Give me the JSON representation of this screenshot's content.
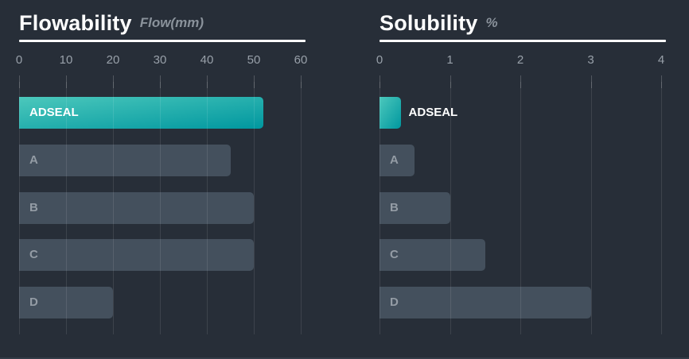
{
  "page": {
    "background_color": "#272e38",
    "bar_color": "#44505d",
    "highlight_gradient": [
      "#4cc8bc",
      "#00979f"
    ],
    "gridline_color": "rgba(255,255,255,0.10)",
    "title_color": "#ffffff",
    "subtitle_color": "#8a929b",
    "tick_label_color": "#98a0a9"
  },
  "chart_data": [
    {
      "type": "bar",
      "orientation": "horizontal",
      "title": "Flowability",
      "subtitle": "Flow(mm)",
      "categories": [
        "ADSEAL",
        "A",
        "B",
        "C",
        "D"
      ],
      "values": [
        52,
        45,
        50,
        50,
        20
      ],
      "xlim": [
        0,
        60
      ],
      "ticks": [
        0,
        10,
        20,
        30,
        40,
        50,
        60
      ],
      "highlight_category": "ADSEAL",
      "grid": true,
      "legend": "none"
    },
    {
      "type": "bar",
      "orientation": "horizontal",
      "title": "Solubility",
      "subtitle": "%",
      "categories": [
        "ADSEAL",
        "A",
        "B",
        "C",
        "D"
      ],
      "values": [
        0.3,
        0.5,
        1,
        1.5,
        3
      ],
      "xlim": [
        0,
        4
      ],
      "ticks": [
        0,
        1,
        2,
        3,
        4
      ],
      "highlight_category": "ADSEAL",
      "grid": true,
      "legend": "none"
    }
  ]
}
